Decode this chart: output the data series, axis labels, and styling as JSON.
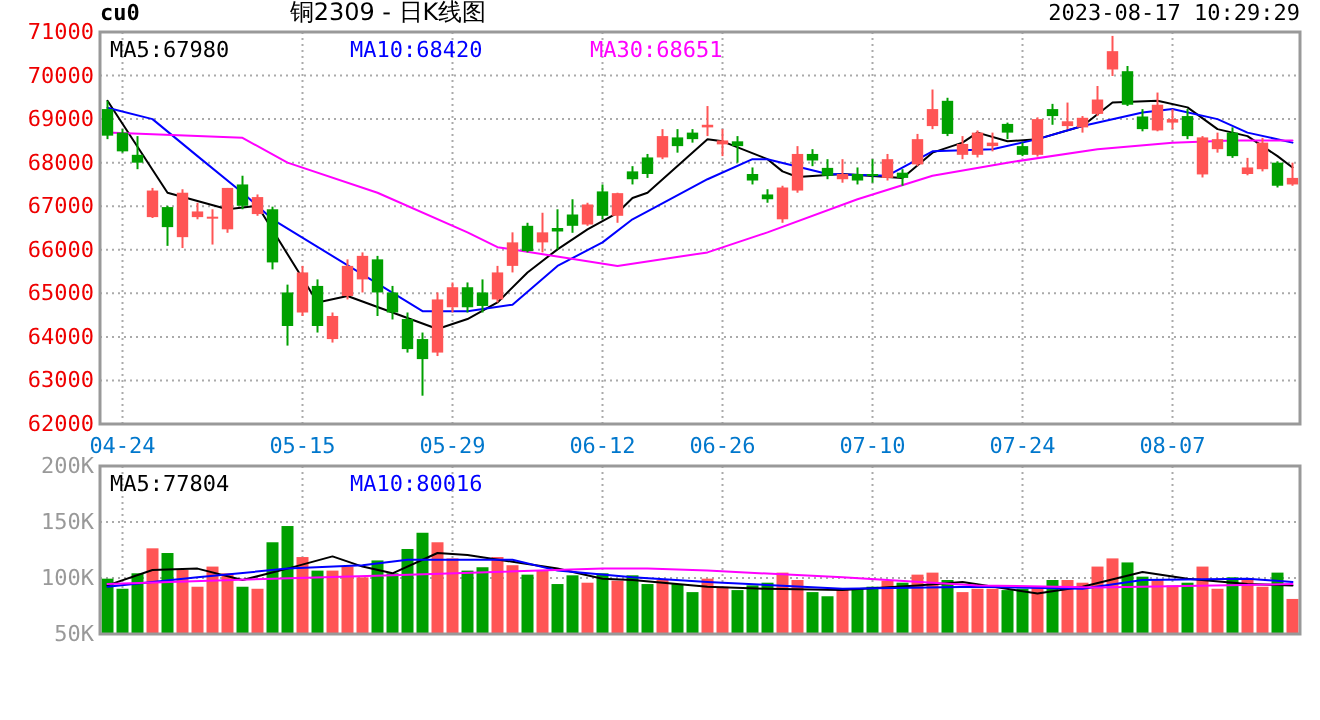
{
  "chart_data": [
    {
      "type": "candlestick",
      "title": "铜2309 - 日K线图",
      "annotations": [
        "cu0",
        "2023-08-17 10:29:29"
      ],
      "categories": [
        null,
        "04-24",
        null,
        null,
        null,
        null,
        null,
        null,
        null,
        null,
        null,
        null,
        null,
        "05-15",
        null,
        null,
        null,
        null,
        null,
        null,
        null,
        null,
        null,
        "05-29",
        null,
        null,
        null,
        null,
        null,
        null,
        null,
        null,
        null,
        "06-12",
        null,
        null,
        null,
        null,
        null,
        null,
        null,
        "06-26",
        null,
        null,
        null,
        null,
        null,
        null,
        null,
        null,
        null,
        "07-10",
        null,
        null,
        null,
        null,
        null,
        null,
        null,
        null,
        null,
        "07-24",
        null,
        null,
        null,
        null,
        null,
        null,
        null,
        null,
        null,
        "08-07",
        null,
        null,
        null,
        null,
        null,
        null,
        null,
        null
      ],
      "ohlc": [
        [
          69230,
          69420,
          68540,
          68620
        ],
        [
          68690,
          68770,
          68230,
          68260
        ],
        [
          68180,
          68610,
          67850,
          68000
        ],
        [
          66750,
          67420,
          66730,
          67360
        ],
        [
          66980,
          67010,
          66090,
          66520
        ],
        [
          66290,
          67390,
          66040,
          67310
        ],
        [
          66750,
          67080,
          66700,
          66880
        ],
        [
          66730,
          66930,
          66120,
          66760
        ],
        [
          66470,
          67420,
          66390,
          67420
        ],
        [
          67500,
          67700,
          66930,
          67010
        ],
        [
          66820,
          67270,
          66780,
          67210
        ],
        [
          66930,
          66990,
          65550,
          65710
        ],
        [
          65020,
          65200,
          63800,
          64250
        ],
        [
          64560,
          65630,
          64480,
          65480
        ],
        [
          65170,
          65320,
          64100,
          64250
        ],
        [
          63950,
          64560,
          63870,
          64480
        ],
        [
          64940,
          65780,
          64860,
          65630
        ],
        [
          65320,
          65940,
          65020,
          65860
        ],
        [
          65780,
          65860,
          64480,
          65020
        ],
        [
          65020,
          65170,
          64400,
          64560
        ],
        [
          64410,
          64560,
          63640,
          63720
        ],
        [
          63950,
          64100,
          62650,
          63490
        ],
        [
          63640,
          65020,
          63560,
          64860
        ],
        [
          64680,
          65250,
          64560,
          65140
        ],
        [
          65140,
          65250,
          64560,
          64680
        ],
        [
          65020,
          65320,
          64560,
          64710
        ],
        [
          64860,
          65630,
          64790,
          65480
        ],
        [
          65630,
          66400,
          65480,
          66170
        ],
        [
          66550,
          66620,
          65940,
          65970
        ],
        [
          66170,
          66850,
          65940,
          66400
        ],
        [
          66500,
          66930,
          66010,
          66420
        ],
        [
          66810,
          67160,
          66390,
          66550
        ],
        [
          66580,
          67080,
          66550,
          67040
        ],
        [
          67340,
          67500,
          66700,
          66780
        ],
        [
          66780,
          67310,
          66620,
          67300
        ],
        [
          67800,
          67920,
          67500,
          67620
        ],
        [
          68120,
          68200,
          67650,
          67740
        ],
        [
          68120,
          68770,
          68080,
          68610
        ],
        [
          68580,
          68770,
          68230,
          68380
        ],
        [
          68690,
          68770,
          68460,
          68540
        ],
        [
          68810,
          69300,
          68610,
          68870
        ],
        [
          68420,
          68770,
          68150,
          68510
        ],
        [
          68490,
          68610,
          68000,
          68380
        ],
        [
          67740,
          67890,
          67500,
          67590
        ],
        [
          67270,
          67390,
          67080,
          67160
        ],
        [
          66700,
          67470,
          66620,
          67430
        ],
        [
          67360,
          68380,
          67310,
          68200
        ],
        [
          68200,
          68310,
          67920,
          68050
        ],
        [
          67880,
          68080,
          67620,
          67700
        ],
        [
          67620,
          68080,
          67540,
          67740
        ],
        [
          67740,
          67890,
          67500,
          67590
        ],
        [
          67740,
          68080,
          67540,
          67700
        ],
        [
          67650,
          68200,
          67590,
          68080
        ],
        [
          67770,
          67850,
          67470,
          67650
        ],
        [
          67960,
          68660,
          67920,
          68540
        ],
        [
          68840,
          69680,
          68770,
          69230
        ],
        [
          69420,
          69490,
          68610,
          68660
        ],
        [
          68180,
          68610,
          68080,
          68430
        ],
        [
          68180,
          68740,
          68120,
          68690
        ],
        [
          68380,
          68690,
          68260,
          68460
        ],
        [
          68890,
          68920,
          68540,
          68690
        ],
        [
          68380,
          68460,
          68150,
          68180
        ],
        [
          68180,
          69040,
          68140,
          69000
        ],
        [
          69230,
          69350,
          68870,
          69070
        ],
        [
          68840,
          69380,
          68770,
          68950
        ],
        [
          68810,
          69070,
          68690,
          69030
        ],
        [
          69120,
          69760,
          69070,
          69450
        ],
        [
          70140,
          70910,
          69990,
          70560
        ],
        [
          70100,
          70220,
          69300,
          69330
        ],
        [
          69060,
          69230,
          68720,
          68770
        ],
        [
          68740,
          69610,
          68720,
          69330
        ],
        [
          68920,
          69230,
          68770,
          69000
        ],
        [
          69070,
          69230,
          68540,
          68610
        ],
        [
          67730,
          68610,
          67660,
          68580
        ],
        [
          68310,
          68690,
          68230,
          68540
        ],
        [
          68690,
          68810,
          68110,
          68150
        ],
        [
          67740,
          68110,
          67710,
          67890
        ],
        [
          67850,
          68570,
          67800,
          68460
        ],
        [
          68000,
          68030,
          67430,
          67470
        ],
        [
          67500,
          68000,
          67470,
          67650
        ]
      ],
      "series": [
        {
          "name": "MA5:67980",
          "type": "line",
          "color": "#000000",
          "values": [
            69420,
            null,
            null,
            null,
            67310,
            null,
            null,
            null,
            66930,
            null,
            67010,
            null,
            null,
            null,
            64790,
            null,
            64940,
            null,
            null,
            null,
            null,
            null,
            64180,
            null,
            64410,
            null,
            64790,
            null,
            65480,
            null,
            66010,
            null,
            66470,
            null,
            66850,
            67190,
            67310,
            null,
            null,
            null,
            68540,
            68490,
            null,
            null,
            68080,
            67800,
            67670,
            null,
            null,
            67740,
            null,
            null,
            null,
            67650,
            null,
            68230,
            null,
            68460,
            68690,
            null,
            68490,
            null,
            68540,
            null,
            null,
            68840,
            null,
            69380,
            null,
            null,
            69420,
            null,
            69270,
            null,
            68770,
            null,
            68610,
            null,
            68150,
            67890
          ]
        },
        {
          "name": "MA10:68420",
          "type": "line",
          "color": "#0000ff",
          "values": [
            69260,
            null,
            null,
            69000,
            null,
            null,
            68150,
            null,
            null,
            67310,
            null,
            66700,
            null,
            null,
            null,
            null,
            null,
            null,
            null,
            null,
            null,
            64590,
            null,
            null,
            64590,
            null,
            null,
            64740,
            null,
            null,
            65630,
            null,
            null,
            66170,
            null,
            66700,
            66880,
            null,
            null,
            null,
            67620,
            null,
            null,
            68080,
            68080,
            null,
            null,
            null,
            67740,
            null,
            null,
            null,
            67700,
            null,
            null,
            68260,
            null,
            null,
            null,
            68310,
            null,
            null,
            68540,
            null,
            null,
            68840,
            null,
            null,
            null,
            69150,
            null,
            69230,
            null,
            null,
            69000,
            null,
            68690,
            null,
            null,
            68460
          ]
        },
        {
          "name": "MA30:68651",
          "type": "line",
          "color": "#ff00ff",
          "values": [
            68690,
            null,
            null,
            null,
            null,
            null,
            null,
            null,
            null,
            68570,
            null,
            null,
            68000,
            null,
            null,
            null,
            null,
            null,
            67310,
            null,
            null,
            null,
            null,
            null,
            66400,
            null,
            66060,
            null,
            null,
            null,
            null,
            null,
            null,
            null,
            65630,
            null,
            null,
            null,
            null,
            null,
            65940,
            null,
            null,
            null,
            66400,
            null,
            null,
            null,
            null,
            null,
            67160,
            null,
            null,
            null,
            null,
            67700,
            null,
            null,
            null,
            null,
            68000,
            null,
            null,
            null,
            null,
            null,
            68310,
            null,
            null,
            null,
            null,
            68460,
            null,
            null,
            null,
            68510,
            null,
            null,
            null,
            68510
          ]
        }
      ],
      "ylim": [
        62000,
        71000
      ],
      "yticks": [
        62000,
        63000,
        64000,
        65000,
        66000,
        67000,
        68000,
        69000,
        70000,
        71000
      ],
      "grid": true,
      "legend": "top"
    },
    {
      "type": "bar",
      "tick_labels": "y",
      "categories": [
        null,
        null,
        null,
        null,
        null,
        null,
        null,
        null,
        null,
        null,
        null,
        null,
        null,
        null,
        null,
        null,
        null,
        null,
        null,
        null,
        null,
        null,
        null,
        null,
        null,
        null,
        null,
        null,
        null,
        null,
        null,
        null,
        null,
        null,
        null,
        null,
        null,
        null,
        null,
        null,
        null,
        null,
        null,
        null,
        null,
        null,
        null,
        null,
        null,
        null,
        null,
        null,
        null,
        null,
        null,
        null,
        null,
        null,
        null,
        null,
        null,
        null,
        null,
        null,
        null,
        null,
        null,
        null,
        null,
        null,
        null,
        null,
        null,
        null,
        null,
        null,
        null,
        null,
        null,
        null
      ],
      "series": [
        {
          "values": [
            99400,
            90400,
            104200,
            126500,
            122300,
            107200,
            92200,
            110200,
            104200,
            92200,
            90400,
            131900,
            146400,
            118700,
            106600,
            106600,
            110200,
            100600,
            115700,
            104200,
            125900,
            140400,
            131900,
            117500,
            106600,
            109600,
            118700,
            111400,
            103000,
            106600,
            94600,
            102400,
            95800,
            104200,
            97600,
            102400,
            94600,
            98200,
            94600,
            87400,
            99400,
            92200,
            89200,
            93400,
            95800,
            104800,
            98200,
            87400,
            83700,
            90400,
            90400,
            92200,
            97600,
            95800,
            103000,
            104800,
            98200,
            87400,
            90400,
            90400,
            89200,
            90400,
            92200,
            98200,
            98200,
            95800,
            110200,
            117500,
            113900,
            101200,
            98200,
            93400,
            95800,
            110200,
            90400,
            100600,
            99400,
            92200,
            104800,
            81300
          ],
          "colors": [
            "#00a000",
            "#00a000",
            "#00a000",
            "#ff5555",
            "#00a000",
            "#ff5555",
            "#ff5555",
            "#ff5555",
            "#ff5555",
            "#00a000",
            "#ff5555",
            "#00a000",
            "#00a000",
            "#ff5555",
            "#00a000",
            "#ff5555",
            "#ff5555",
            "#ff5555",
            "#00a000",
            "#00a000",
            "#00a000",
            "#00a000",
            "#ff5555",
            "#ff5555",
            "#00a000",
            "#00a000",
            "#ff5555",
            "#ff5555",
            "#00a000",
            "#ff5555",
            "#00a000",
            "#00a000",
            "#ff5555",
            "#00a000",
            "#ff5555",
            "#00a000",
            "#00a000",
            "#ff5555",
            "#00a000",
            "#00a000",
            "#ff5555",
            "#ff5555",
            "#00a000",
            "#00a000",
            "#00a000",
            "#ff5555",
            "#ff5555",
            "#00a000",
            "#00a000",
            "#ff5555",
            "#00a000",
            "#00a000",
            "#ff5555",
            "#00a000",
            "#ff5555",
            "#ff5555",
            "#00a000",
            "#ff5555",
            "#ff5555",
            "#ff5555",
            "#00a000",
            "#00a000",
            "#ff5555",
            "#00a000",
            "#ff5555",
            "#ff5555",
            "#ff5555",
            "#ff5555",
            "#00a000",
            "#00a000",
            "#ff5555",
            "#ff5555",
            "#00a000",
            "#ff5555",
            "#ff5555",
            "#00a000",
            "#ff5555",
            "#ff5555",
            "#00a000",
            "#ff5555"
          ]
        },
        {
          "name": "MA5:77804",
          "type": "line",
          "color": "#000000",
          "values": [
            93400,
            null,
            null,
            107200,
            null,
            null,
            108400,
            null,
            null,
            98200,
            null,
            null,
            108400,
            null,
            null,
            119300,
            null,
            110200,
            null,
            104200,
            null,
            null,
            122300,
            null,
            120500,
            null,
            null,
            114500,
            null,
            null,
            108400,
            null,
            null,
            99400,
            null,
            98200,
            null,
            null,
            null,
            null,
            92200,
            null,
            null,
            null,
            90400,
            null,
            null,
            null,
            null,
            89200,
            null,
            null,
            null,
            null,
            93400,
            null,
            null,
            96400,
            null,
            null,
            null,
            null,
            86100,
            null,
            null,
            92200,
            null,
            null,
            null,
            105400,
            null,
            null,
            99400,
            null,
            null,
            null,
            94600,
            null,
            null,
            93400
          ]
        },
        {
          "name": "MA10:80016",
          "type": "line",
          "color": "#0000ff",
          "values": [
            92200,
            null,
            null,
            null,
            null,
            null,
            100600,
            null,
            null,
            null,
            null,
            null,
            108400,
            null,
            null,
            null,
            null,
            111400,
            null,
            null,
            116300,
            null,
            null,
            null,
            null,
            null,
            null,
            116300,
            null,
            null,
            106600,
            null,
            null,
            null,
            null,
            100600,
            null,
            null,
            null,
            null,
            96400,
            null,
            null,
            null,
            null,
            null,
            null,
            null,
            null,
            90400,
            null,
            null,
            null,
            null,
            null,
            null,
            null,
            null,
            92200,
            null,
            null,
            null,
            null,
            null,
            null,
            90400,
            null,
            null,
            null,
            98200,
            null,
            null,
            null,
            null,
            null,
            null,
            99400,
            null,
            null,
            96400
          ]
        },
        {
          "type": "line",
          "color": "#ff00ff",
          "values": [
            94600,
            null,
            null,
            null,
            null,
            null,
            null,
            null,
            null,
            null,
            null,
            99400,
            null,
            null,
            null,
            null,
            null,
            null,
            null,
            102400,
            null,
            null,
            null,
            null,
            null,
            null,
            null,
            null,
            null,
            null,
            null,
            null,
            null,
            108400,
            null,
            null,
            108400,
            null,
            null,
            null,
            106600,
            null,
            null,
            null,
            null,
            null,
            null,
            null,
            null,
            100600,
            null,
            null,
            null,
            null,
            null,
            null,
            null,
            null,
            93400,
            null,
            null,
            null,
            null,
            null,
            null,
            null,
            91600,
            null,
            null,
            null,
            null,
            null,
            null,
            null,
            null,
            null,
            null,
            null,
            null,
            94600
          ]
        }
      ],
      "ylim": [
        50000,
        200000
      ],
      "yticks": [
        {
          "value": 50000,
          "label": "50K"
        },
        {
          "value": 100000,
          "label": "100K"
        },
        {
          "value": 150000,
          "label": "150K"
        },
        {
          "value": 200000,
          "label": "200K"
        }
      ],
      "grid": true,
      "legend": "top"
    }
  ]
}
